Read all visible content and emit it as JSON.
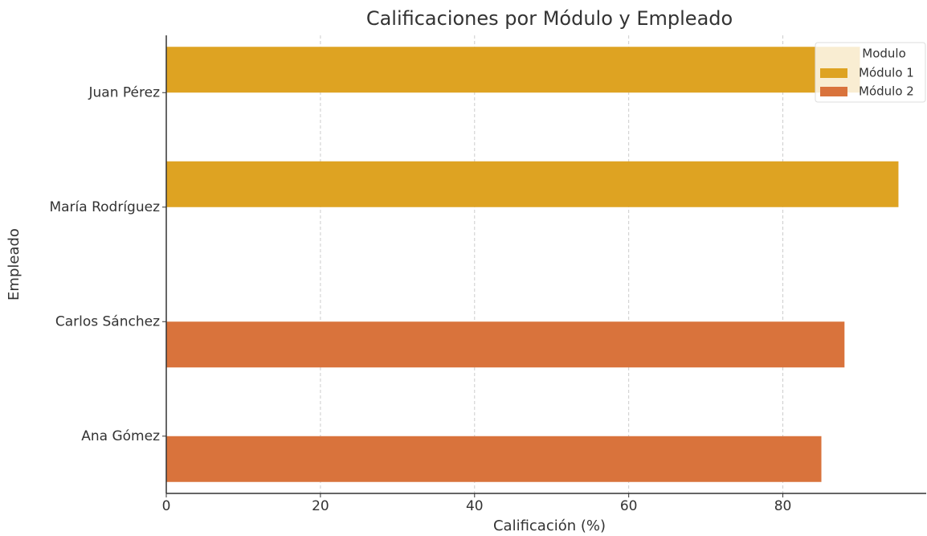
{
  "chart_data": {
    "type": "bar",
    "orientation": "horizontal",
    "title": "Calificaciones por Módulo y Empleado",
    "xlabel": "Calificación (%)",
    "ylabel": "Empleado",
    "categories": [
      "Juan Pérez",
      "María Rodríguez",
      "Carlos Sánchez",
      "Ana Gómez"
    ],
    "series": [
      {
        "name": "Módulo 1",
        "color": "#dea322",
        "values": [
          90,
          95,
          null,
          null
        ]
      },
      {
        "name": "Módulo 2",
        "color": "#d9733c",
        "values": [
          null,
          null,
          88,
          85
        ]
      }
    ],
    "xlim": [
      0,
      98.6
    ],
    "xticks": [
      0,
      20,
      40,
      60,
      80
    ],
    "grid": true,
    "legend": {
      "title": "Modulo",
      "position": "upper right"
    }
  }
}
